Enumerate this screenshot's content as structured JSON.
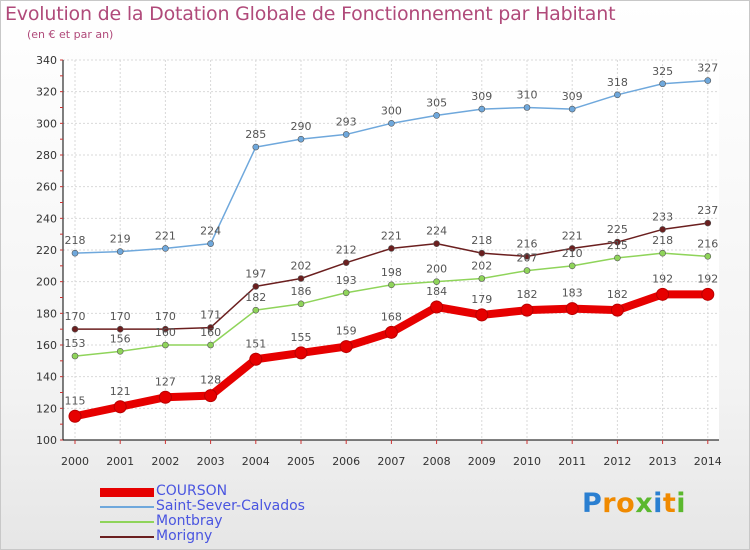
{
  "chart_data": {
    "type": "line",
    "title": "Evolution de la Dotation Globale de Fonctionnement par Habitant",
    "subtitle": "(en € et par an)",
    "x": [
      "2000",
      "2001",
      "2002",
      "2003",
      "2004",
      "2005",
      "2006",
      "2007",
      "2008",
      "2009",
      "2010",
      "2011",
      "2012",
      "2013",
      "2014"
    ],
    "ylim": [
      100,
      340
    ],
    "yticks": [
      100,
      120,
      140,
      160,
      180,
      200,
      220,
      240,
      260,
      280,
      300,
      320,
      340
    ],
    "grid": true,
    "legend_position": "bottom-left",
    "series": [
      {
        "name": "COURSON",
        "color": "#e60000",
        "values": [
          115,
          121,
          127,
          128,
          151,
          155,
          159,
          168,
          184,
          179,
          182,
          183,
          182,
          192,
          192
        ]
      },
      {
        "name": "Saint-Sever-Calvados",
        "color": "#6fa8dc",
        "values": [
          218,
          219,
          221,
          224,
          285,
          290,
          293,
          300,
          305,
          309,
          310,
          309,
          318,
          325,
          327
        ]
      },
      {
        "name": "Montbray",
        "color": "#8fd45a",
        "values": [
          153,
          156,
          160,
          160,
          182,
          186,
          193,
          198,
          200,
          202,
          207,
          210,
          215,
          218,
          216
        ]
      },
      {
        "name": "Morigny",
        "color": "#6b1f1f",
        "values": [
          170,
          170,
          170,
          171,
          197,
          202,
          212,
          221,
          224,
          218,
          216,
          221,
          225,
          233,
          237
        ]
      }
    ]
  },
  "branding": {
    "logo_letters": [
      "P",
      "r",
      "o",
      "x",
      "i",
      "t",
      "i"
    ],
    "logo_colors": [
      "#2a7fd1",
      "#f08a00",
      "#f08a00",
      "#5bb82e",
      "#2a7fd1",
      "#f08a00",
      "#5bb82e"
    ]
  }
}
